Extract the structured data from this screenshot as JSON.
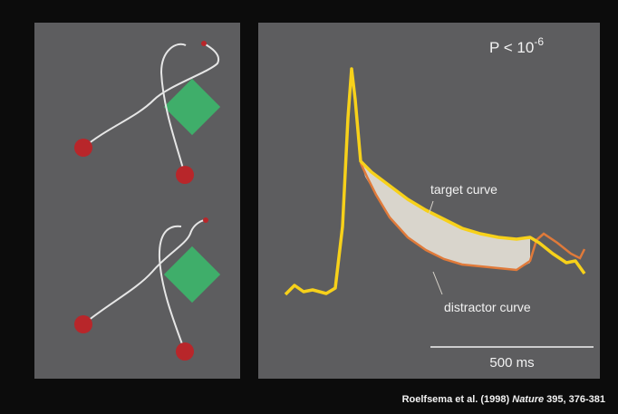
{
  "figure": {
    "p_value": {
      "base": "P < 10",
      "exponent": "-6"
    },
    "labels": {
      "target": "target curve",
      "distractor": "distractor curve"
    },
    "scale_bar": "500 ms",
    "citation": {
      "authors": "Roelfsema et al. (1998)",
      "journal": "Nature",
      "reference": "395, 376-381"
    }
  }
}
